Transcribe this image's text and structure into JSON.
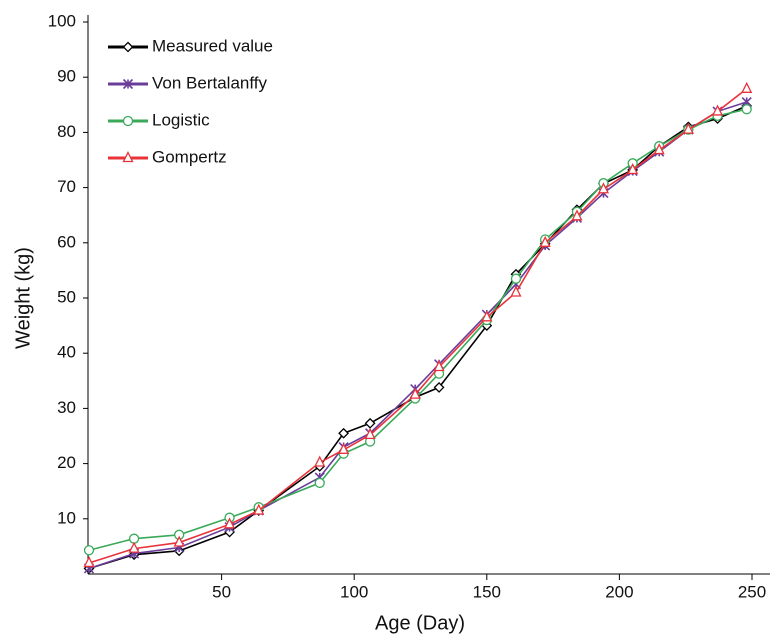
{
  "chart_data": {
    "type": "line",
    "x_label": "Age (Day)",
    "y_label": "Weight (kg)",
    "x": [
      0,
      17,
      34,
      53,
      64,
      87,
      96,
      106,
      123,
      132,
      150,
      161,
      172,
      184,
      194,
      205,
      215,
      226,
      237,
      248
    ],
    "series": [
      {
        "name": "Measured value",
        "color": "#000000",
        "marker": "diamond",
        "values": [
          1,
          3.5,
          4.2,
          7.6,
          11.5,
          19.5,
          25.5,
          27.3,
          32,
          33.8,
          45,
          54.3,
          59.8,
          66,
          70.7,
          73.2,
          77.5,
          81,
          82.5,
          84.8
        ]
      },
      {
        "name": "Von Bertalanffy",
        "color": "#6a3d9a",
        "marker": "star",
        "values": [
          1,
          3.7,
          4.8,
          8.5,
          11.5,
          17.5,
          23,
          25.5,
          33.5,
          38,
          47,
          52.5,
          59.5,
          64.5,
          69,
          73,
          76.5,
          80.5,
          83.8,
          85.5
        ]
      },
      {
        "name": "Logistic",
        "color": "#3aaa5a",
        "marker": "circle",
        "values": [
          4.3,
          6.4,
          7.1,
          10.2,
          12.1,
          16.5,
          21.8,
          24,
          31.8,
          36.3,
          46,
          53.5,
          60.6,
          65.6,
          70.8,
          74.4,
          77.5,
          80.5,
          83,
          84.2
        ]
      },
      {
        "name": "Gompertz",
        "color": "#e8333a",
        "marker": "triangle",
        "values": [
          2,
          4.6,
          5.7,
          9,
          11.5,
          20.2,
          22.5,
          25.2,
          32.5,
          37.5,
          46.5,
          51,
          60,
          64.8,
          69.7,
          73.2,
          76.8,
          80.5,
          83.8,
          87.9
        ]
      }
    ],
    "xlim": [
      0,
      250
    ],
    "xticks": [
      50,
      100,
      150,
      200,
      250
    ],
    "ylim": [
      0,
      100
    ],
    "yticks": [
      10,
      20,
      30,
      40,
      50,
      60,
      70,
      80,
      90,
      100
    ],
    "grid": false,
    "legend": "upper left"
  }
}
